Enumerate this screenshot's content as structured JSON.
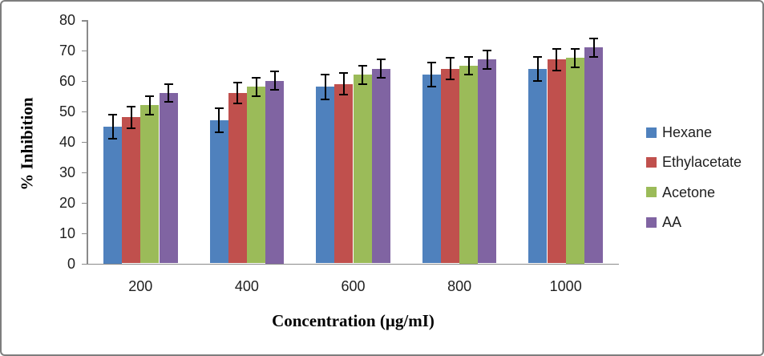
{
  "chart_data": {
    "type": "bar",
    "title": "",
    "xlabel": "Concentration (µg/mI)",
    "ylabel": "% Inhibition",
    "categories": [
      "200",
      "400",
      "600",
      "800",
      "1000"
    ],
    "series": [
      {
        "name": "Hexane",
        "color": "#4F81BD",
        "values": [
          45,
          47,
          58,
          62,
          64
        ],
        "errors": [
          4,
          4,
          4,
          4,
          4
        ]
      },
      {
        "name": "Ethylacetate",
        "color": "#C0504D",
        "values": [
          48,
          56,
          59,
          64,
          67
        ],
        "errors": [
          3.5,
          3.5,
          3.5,
          3.5,
          3.5
        ]
      },
      {
        "name": "Acetone",
        "color": "#9BBB59",
        "values": [
          52,
          58,
          62,
          65,
          67.5
        ],
        "errors": [
          3,
          3,
          3,
          3,
          3
        ]
      },
      {
        "name": "AA",
        "color": "#8064A2",
        "values": [
          56,
          60,
          64,
          67,
          71
        ],
        "errors": [
          3,
          3,
          3,
          3,
          3
        ]
      }
    ],
    "ylim": [
      0,
      80
    ],
    "ytick_step": 10,
    "yticks": [
      "0",
      "10",
      "20",
      "30",
      "40",
      "50",
      "60",
      "70",
      "80"
    ],
    "grid": false,
    "error_bars": true,
    "legend_position": "right"
  },
  "style": {
    "axis_color": "#8a8a8a",
    "text_color": "#1f1f1f",
    "error_bar_color": "#000000",
    "border_color": "#7e7e7e",
    "background": "#ffffff"
  }
}
